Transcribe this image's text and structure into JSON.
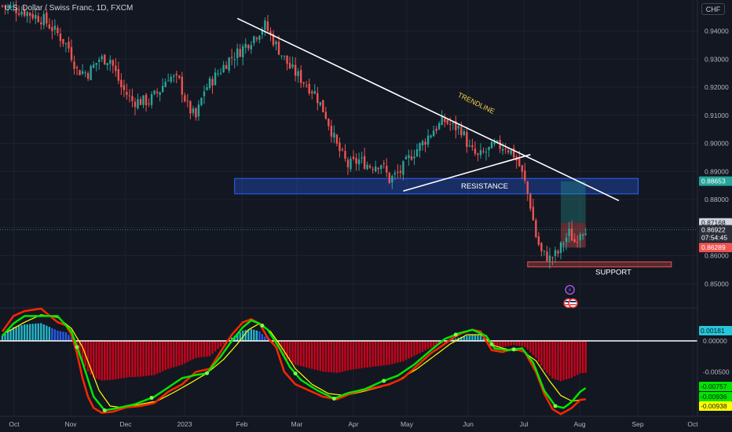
{
  "header": {
    "title": "U.S. Dollar / Swiss Franc, 1D, FXCM",
    "currency_button": "CHF"
  },
  "colors": {
    "background": "#131722",
    "up": "#26a69a",
    "down": "#ef5350",
    "grid": "#1e222d",
    "macd_line": "#ff2600",
    "signal_line": "#ffff00",
    "rsi_line": "#00e600"
  },
  "chart_data": [
    {
      "type": "candlestick",
      "title": "U.S. Dollar / Swiss Franc, 1D, FXCM",
      "x_ticks": [
        "Oct",
        "Nov",
        "Dec",
        "2023",
        "Feb",
        "Mar",
        "Apr",
        "May",
        "Jun",
        "Jul",
        "Aug",
        "Sep",
        "Oct"
      ],
      "y_ticks": [
        "0.94000",
        "0.93000",
        "0.92000",
        "0.91000",
        "0.90000",
        "0.89000",
        "0.88000",
        "0.87000",
        "0.86000",
        "0.85000"
      ],
      "ylim": [
        0.8465,
        0.9495
      ],
      "price_labels": [
        {
          "text": "0.88653",
          "kind": "target"
        },
        {
          "text": "0.87168",
          "kind": "neutral"
        },
        {
          "text": "0.86922",
          "kind": "last"
        },
        {
          "text": "07:54:45",
          "kind": "countdown"
        },
        {
          "text": "0.86289",
          "kind": "stop"
        }
      ],
      "annotations": {
        "trendline": "TRENDLINE",
        "resistance": "RESISTANCE",
        "support": "SUPPORT"
      },
      "anchors": [
        {
          "x": 0,
          "y": 0.949
        },
        {
          "x": 8,
          "y": 0.947
        },
        {
          "x": 15,
          "y": 0.944
        },
        {
          "x": 20,
          "y": 0.939
        },
        {
          "x": 24,
          "y": 0.934
        },
        {
          "x": 27,
          "y": 0.926
        },
        {
          "x": 31,
          "y": 0.925
        },
        {
          "x": 35,
          "y": 0.93
        },
        {
          "x": 39,
          "y": 0.93
        },
        {
          "x": 43,
          "y": 0.92
        },
        {
          "x": 47,
          "y": 0.915
        },
        {
          "x": 53,
          "y": 0.915
        },
        {
          "x": 57,
          "y": 0.919
        },
        {
          "x": 60,
          "y": 0.924
        },
        {
          "x": 64,
          "y": 0.922
        },
        {
          "x": 67,
          "y": 0.913
        },
        {
          "x": 70,
          "y": 0.909
        },
        {
          "x": 73,
          "y": 0.919
        },
        {
          "x": 78,
          "y": 0.925
        },
        {
          "x": 82,
          "y": 0.93
        },
        {
          "x": 86,
          "y": 0.933
        },
        {
          "x": 91,
          "y": 0.938
        },
        {
          "x": 95,
          "y": 0.942
        },
        {
          "x": 99,
          "y": 0.935
        },
        {
          "x": 104,
          "y": 0.927
        },
        {
          "x": 108,
          "y": 0.923
        },
        {
          "x": 113,
          "y": 0.918
        },
        {
          "x": 117,
          "y": 0.91
        },
        {
          "x": 121,
          "y": 0.899
        },
        {
          "x": 125,
          "y": 0.892
        },
        {
          "x": 129,
          "y": 0.894
        },
        {
          "x": 133,
          "y": 0.892
        },
        {
          "x": 137,
          "y": 0.893
        },
        {
          "x": 140,
          "y": 0.887
        },
        {
          "x": 144,
          "y": 0.89
        },
        {
          "x": 148,
          "y": 0.896
        },
        {
          "x": 152,
          "y": 0.9
        },
        {
          "x": 156,
          "y": 0.905
        },
        {
          "x": 160,
          "y": 0.908
        },
        {
          "x": 163,
          "y": 0.906
        },
        {
          "x": 166,
          "y": 0.905
        },
        {
          "x": 169,
          "y": 0.898
        },
        {
          "x": 172,
          "y": 0.895
        },
        {
          "x": 175,
          "y": 0.897
        },
        {
          "x": 178,
          "y": 0.899
        },
        {
          "x": 182,
          "y": 0.899
        },
        {
          "x": 185,
          "y": 0.896
        },
        {
          "x": 187,
          "y": 0.892
        },
        {
          "x": 189,
          "y": 0.886
        },
        {
          "x": 191,
          "y": 0.878
        },
        {
          "x": 193,
          "y": 0.867
        },
        {
          "x": 195,
          "y": 0.861
        },
        {
          "x": 198,
          "y": 0.859
        },
        {
          "x": 201,
          "y": 0.861
        },
        {
          "x": 203,
          "y": 0.865
        },
        {
          "x": 205,
          "y": 0.868
        },
        {
          "x": 207,
          "y": 0.865
        },
        {
          "x": 209,
          "y": 0.869
        },
        {
          "x": 211,
          "y": 0.87
        }
      ],
      "candle_count": 212,
      "trendline": {
        "from": {
          "x": 85,
          "y": 0.9445
        },
        "to": {
          "x": 223,
          "y": 0.8796
        }
      },
      "rising_line": {
        "from": {
          "x": 145,
          "y": 0.883
        },
        "to": {
          "x": 191,
          "y": 0.896
        }
      },
      "resistance_zone": {
        "x": [
          84,
          230
        ],
        "y": [
          0.882,
          0.8875
        ]
      },
      "support_zone": {
        "x": [
          190,
          242
        ],
        "y": [
          0.856,
          0.8578
        ]
      },
      "position": {
        "x": [
          202,
          211
        ],
        "entry": 0.87168,
        "target": 0.88653,
        "stop": 0.86289
      }
    },
    {
      "type": "indicator",
      "name": "MACD",
      "y_ticks": [
        "0.00181",
        "0.00000",
        "-0.00500",
        "-0.00757",
        "-0.00936",
        "-0.00938"
      ],
      "ylim": [
        -0.0122,
        0.0052
      ],
      "value_labels": [
        {
          "text": "0.00181",
          "kind": "hist"
        },
        {
          "text": "-0.00757",
          "kind": "rsi"
        },
        {
          "text": "-0.00936",
          "kind": "macd"
        },
        {
          "text": "-0.00938",
          "kind": "signal"
        }
      ],
      "macd_anchors": [
        {
          "x": 0,
          "y": 0.0015
        },
        {
          "x": 4,
          "y": 0.004
        },
        {
          "x": 8,
          "y": 0.0048
        },
        {
          "x": 14,
          "y": 0.0052
        },
        {
          "x": 20,
          "y": 0.003
        },
        {
          "x": 23,
          "y": 0.0025
        },
        {
          "x": 25,
          "y": 0.001
        },
        {
          "x": 27,
          "y": -0.002
        },
        {
          "x": 29,
          "y": -0.006
        },
        {
          "x": 31,
          "y": -0.009
        },
        {
          "x": 33,
          "y": -0.0108
        },
        {
          "x": 36,
          "y": -0.0116
        },
        {
          "x": 40,
          "y": -0.0114
        },
        {
          "x": 45,
          "y": -0.0107
        },
        {
          "x": 50,
          "y": -0.0105
        },
        {
          "x": 55,
          "y": -0.01
        },
        {
          "x": 60,
          "y": -0.0082
        },
        {
          "x": 65,
          "y": -0.007
        },
        {
          "x": 70,
          "y": -0.005
        },
        {
          "x": 75,
          "y": -0.0045
        },
        {
          "x": 80,
          "y": -0.001
        },
        {
          "x": 83,
          "y": 0.001
        },
        {
          "x": 87,
          "y": 0.003
        },
        {
          "x": 90,
          "y": 0.0035
        },
        {
          "x": 93,
          "y": 0.0028
        },
        {
          "x": 96,
          "y": 0.0005
        },
        {
          "x": 99,
          "y": -0.001
        },
        {
          "x": 102,
          "y": -0.005
        },
        {
          "x": 106,
          "y": -0.007
        },
        {
          "x": 110,
          "y": -0.0078
        },
        {
          "x": 116,
          "y": -0.009
        },
        {
          "x": 121,
          "y": -0.0094
        },
        {
          "x": 126,
          "y": -0.0085
        },
        {
          "x": 130,
          "y": -0.008
        },
        {
          "x": 135,
          "y": -0.0075
        },
        {
          "x": 140,
          "y": -0.007
        },
        {
          "x": 145,
          "y": -0.006
        },
        {
          "x": 150,
          "y": -0.004
        },
        {
          "x": 155,
          "y": -0.002
        },
        {
          "x": 160,
          "y": -0.0005
        },
        {
          "x": 163,
          "y": 0.0005
        },
        {
          "x": 166,
          "y": 0.0012
        },
        {
          "x": 170,
          "y": 0.0018
        },
        {
          "x": 173,
          "y": 0.0015
        },
        {
          "x": 177,
          "y": -0.0015
        },
        {
          "x": 181,
          "y": -0.0018
        },
        {
          "x": 185,
          "y": -0.0012
        },
        {
          "x": 189,
          "y": -0.0018
        },
        {
          "x": 193,
          "y": -0.005
        },
        {
          "x": 196,
          "y": -0.0085
        },
        {
          "x": 199,
          "y": -0.011
        },
        {
          "x": 202,
          "y": -0.0118
        },
        {
          "x": 206,
          "y": -0.0108
        },
        {
          "x": 209,
          "y": -0.0095
        },
        {
          "x": 211,
          "y": -0.0094
        }
      ],
      "signal_anchors": [
        {
          "x": 0,
          "y": 0.001
        },
        {
          "x": 8,
          "y": 0.003
        },
        {
          "x": 14,
          "y": 0.0042
        },
        {
          "x": 20,
          "y": 0.0038
        },
        {
          "x": 25,
          "y": 0.002
        },
        {
          "x": 29,
          "y": -0.001
        },
        {
          "x": 32,
          "y": -0.0045
        },
        {
          "x": 35,
          "y": -0.008
        },
        {
          "x": 39,
          "y": -0.0105
        },
        {
          "x": 44,
          "y": -0.0108
        },
        {
          "x": 50,
          "y": -0.0102
        },
        {
          "x": 56,
          "y": -0.0097
        },
        {
          "x": 62,
          "y": -0.0083
        },
        {
          "x": 68,
          "y": -0.0068
        },
        {
          "x": 74,
          "y": -0.0052
        },
        {
          "x": 80,
          "y": -0.003
        },
        {
          "x": 85,
          "y": -0.0005
        },
        {
          "x": 89,
          "y": 0.0018
        },
        {
          "x": 93,
          "y": 0.0028
        },
        {
          "x": 97,
          "y": 0.0015
        },
        {
          "x": 101,
          "y": -0.001
        },
        {
          "x": 106,
          "y": -0.0045
        },
        {
          "x": 112,
          "y": -0.007
        },
        {
          "x": 118,
          "y": -0.0085
        },
        {
          "x": 124,
          "y": -0.0088
        },
        {
          "x": 130,
          "y": -0.0082
        },
        {
          "x": 137,
          "y": -0.0074
        },
        {
          "x": 143,
          "y": -0.0064
        },
        {
          "x": 150,
          "y": -0.0045
        },
        {
          "x": 156,
          "y": -0.0025
        },
        {
          "x": 162,
          "y": -0.0005
        },
        {
          "x": 168,
          "y": 0.001
        },
        {
          "x": 173,
          "y": 0.001
        },
        {
          "x": 178,
          "y": -0.0008
        },
        {
          "x": 183,
          "y": -0.0014
        },
        {
          "x": 188,
          "y": -0.0016
        },
        {
          "x": 193,
          "y": -0.0032
        },
        {
          "x": 198,
          "y": -0.0065
        },
        {
          "x": 202,
          "y": -0.0088
        },
        {
          "x": 206,
          "y": -0.0097
        },
        {
          "x": 211,
          "y": -0.0094
        }
      ],
      "rsi_anchors": [
        {
          "x": 0,
          "y": 0.0008
        },
        {
          "x": 4,
          "y": 0.0028
        },
        {
          "x": 8,
          "y": 0.004
        },
        {
          "x": 20,
          "y": 0.004
        },
        {
          "x": 25,
          "y": 0.0015
        },
        {
          "x": 29,
          "y": -0.0035
        },
        {
          "x": 33,
          "y": -0.009
        },
        {
          "x": 37,
          "y": -0.0112
        },
        {
          "x": 42,
          "y": -0.0108
        },
        {
          "x": 48,
          "y": -0.0102
        },
        {
          "x": 55,
          "y": -0.009
        },
        {
          "x": 60,
          "y": -0.0075
        },
        {
          "x": 65,
          "y": -0.006
        },
        {
          "x": 70,
          "y": -0.0055
        },
        {
          "x": 74,
          "y": -0.0052
        },
        {
          "x": 79,
          "y": -0.0025
        },
        {
          "x": 83,
          "y": 0.0
        },
        {
          "x": 87,
          "y": 0.0022
        },
        {
          "x": 90,
          "y": 0.0033
        },
        {
          "x": 93,
          "y": 0.0028
        },
        {
          "x": 96,
          "y": 0.0018
        },
        {
          "x": 100,
          "y": -0.001
        },
        {
          "x": 104,
          "y": -0.0042
        },
        {
          "x": 108,
          "y": -0.0063
        },
        {
          "x": 114,
          "y": -0.008
        },
        {
          "x": 120,
          "y": -0.0093
        },
        {
          "x": 125,
          "y": -0.0084
        },
        {
          "x": 131,
          "y": -0.0078
        },
        {
          "x": 137,
          "y": -0.0066
        },
        {
          "x": 143,
          "y": -0.0056
        },
        {
          "x": 149,
          "y": -0.0038
        },
        {
          "x": 155,
          "y": -0.0015
        },
        {
          "x": 160,
          "y": 0.0003
        },
        {
          "x": 165,
          "y": 0.0012
        },
        {
          "x": 170,
          "y": 0.0018
        },
        {
          "x": 175,
          "y": 0.0008
        },
        {
          "x": 178,
          "y": -0.0012
        },
        {
          "x": 183,
          "y": -0.0015
        },
        {
          "x": 188,
          "y": -0.0012
        },
        {
          "x": 192,
          "y": -0.0035
        },
        {
          "x": 196,
          "y": -0.008
        },
        {
          "x": 200,
          "y": -0.0105
        },
        {
          "x": 203,
          "y": -0.0108
        },
        {
          "x": 206,
          "y": -0.0098
        },
        {
          "x": 209,
          "y": -0.0082
        },
        {
          "x": 211,
          "y": -0.0076
        }
      ],
      "rsi_markers": [
        27,
        37,
        54,
        74,
        94,
        106,
        120,
        138,
        164,
        177,
        185,
        200
      ]
    }
  ]
}
